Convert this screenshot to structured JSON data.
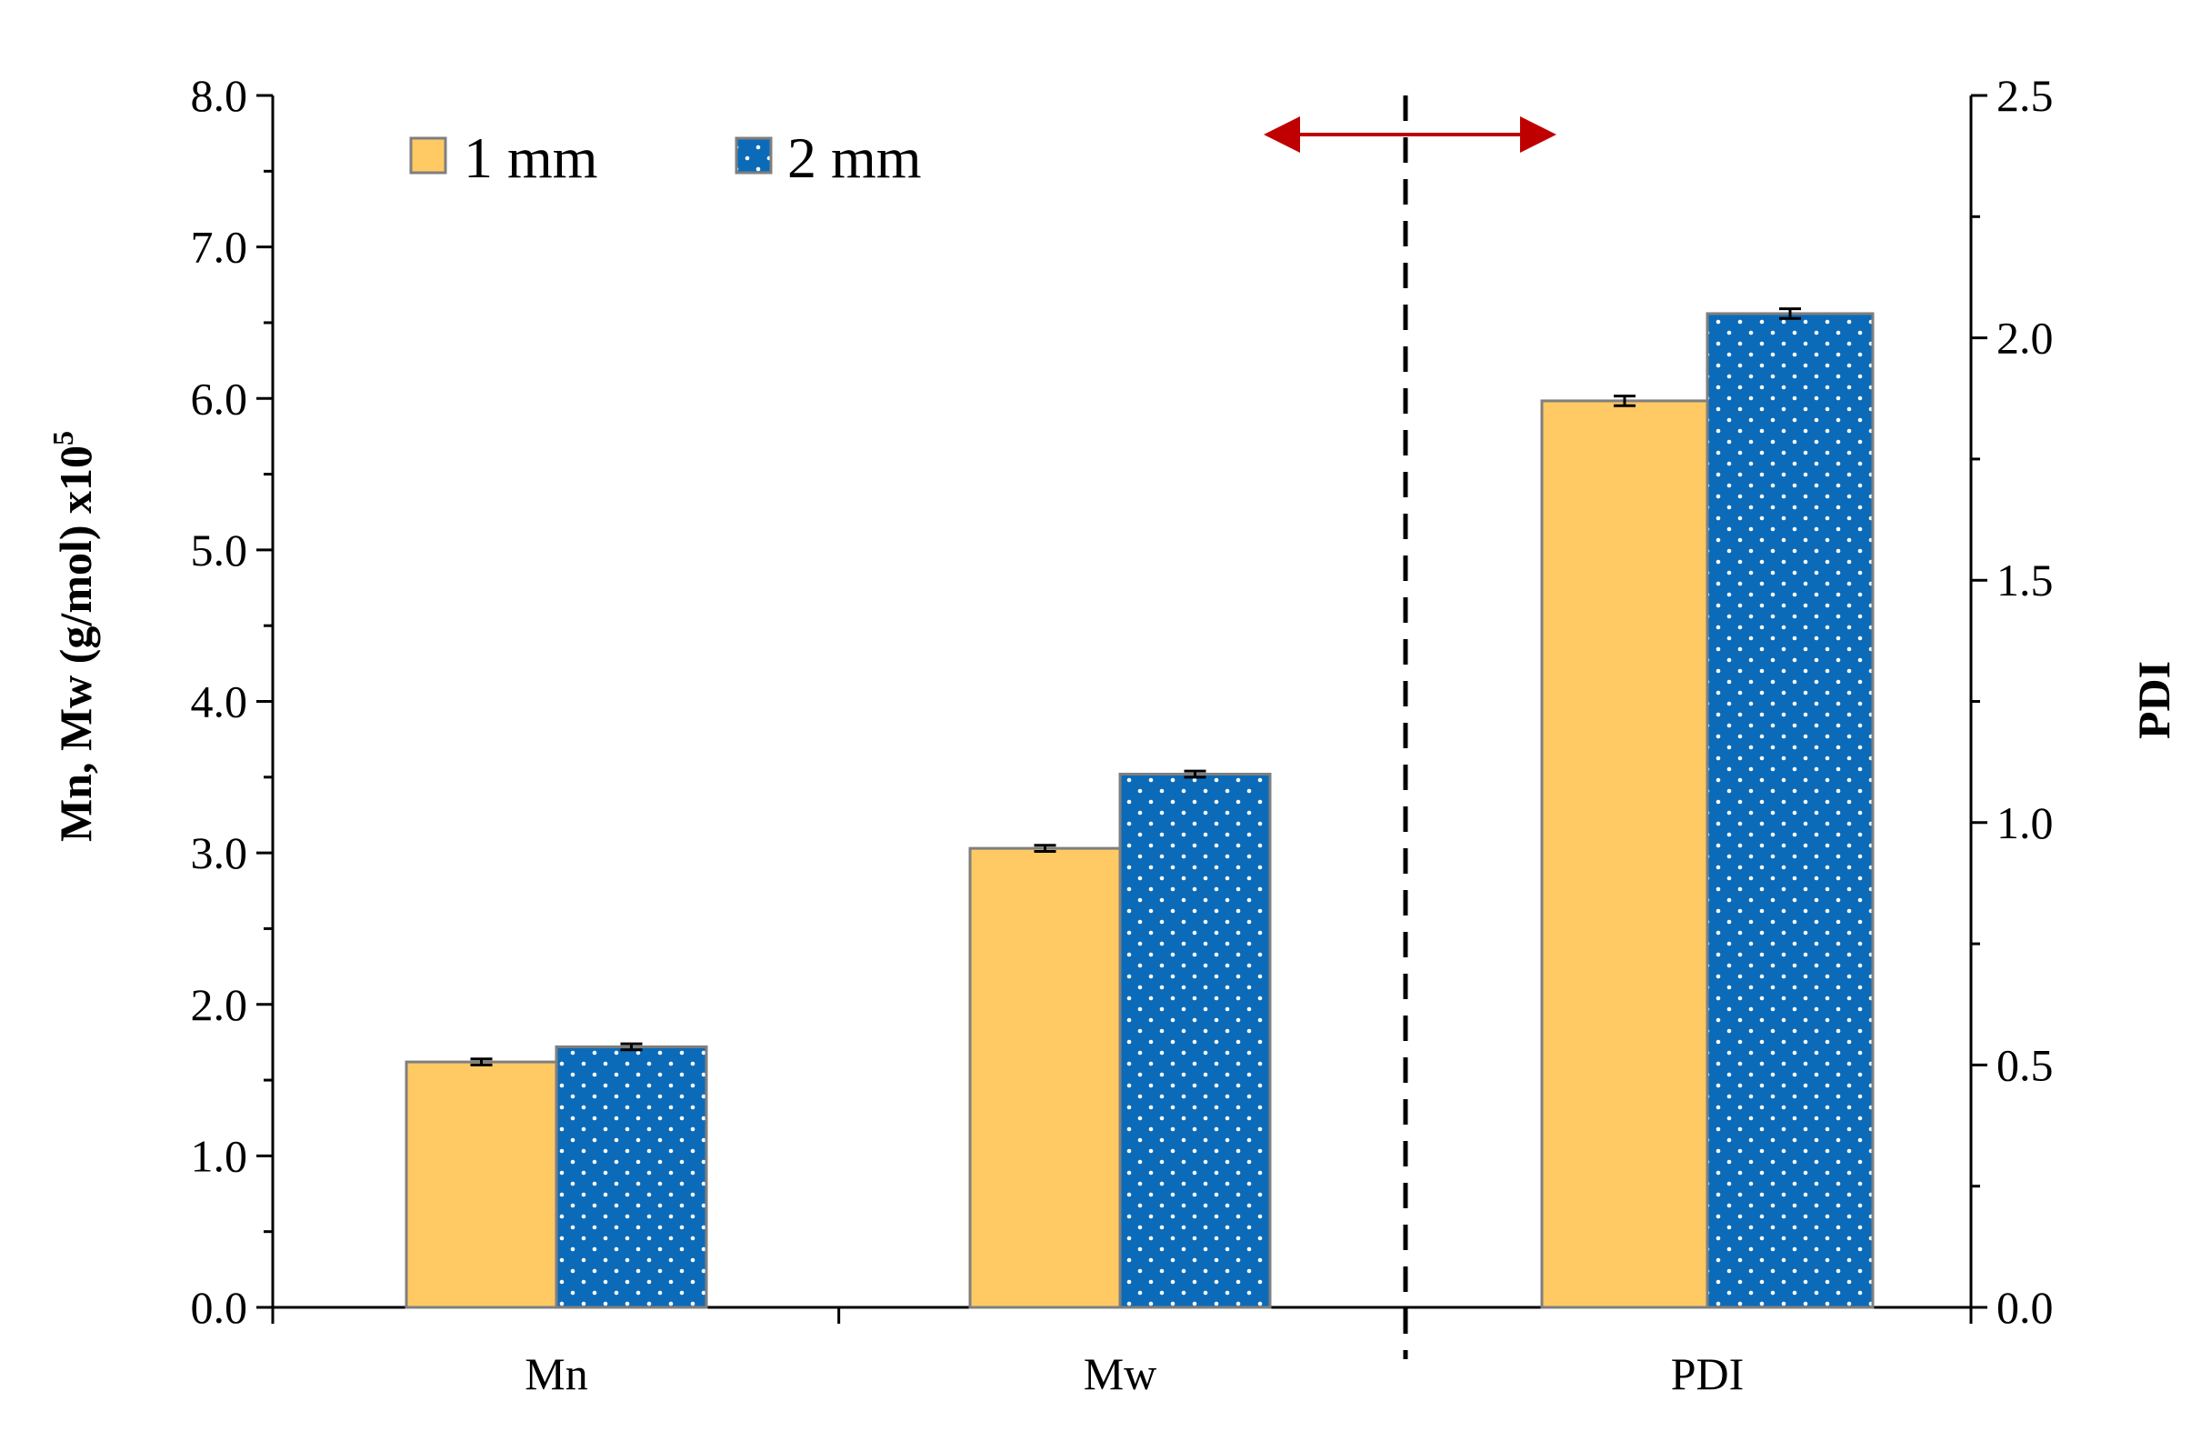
{
  "chart_data": {
    "type": "bar",
    "categories": [
      "Mn",
      "Mw",
      "PDI"
    ],
    "series": [
      {
        "name": "1 mm",
        "values": [
          1.62,
          3.03,
          1.87
        ],
        "errors": [
          0.02,
          0.02,
          0.01
        ],
        "color": "#FFC964",
        "pattern": "solid"
      },
      {
        "name": "2 mm",
        "values": [
          1.72,
          3.52,
          2.05
        ],
        "errors": [
          0.02,
          0.02,
          0.01
        ],
        "color": "#0C6BB8",
        "pattern": "dotted"
      }
    ],
    "axis_assignment": [
      "left",
      "left",
      "right"
    ],
    "left_axis": {
      "label": "Mn, Mw (g/mol) x10",
      "label_superscript": "5",
      "ylim": [
        0,
        8.0
      ],
      "major_ticks": [
        0,
        1,
        2,
        3,
        4,
        5,
        6,
        7,
        8
      ],
      "tick_labels": [
        "0.0",
        "1.0",
        "2.0",
        "3.0",
        "4.0",
        "5.0",
        "6.0",
        "7.0",
        "8.0"
      ]
    },
    "right_axis": {
      "label": "PDI",
      "ylim": [
        0,
        2.5
      ],
      "major_ticks": [
        0,
        0.5,
        1.0,
        1.5,
        2.0,
        2.5
      ],
      "tick_labels": [
        "0.0",
        "0.5",
        "1.0",
        "1.5",
        "2.0",
        "2.5"
      ]
    },
    "legend": {
      "position": "top-left",
      "entries": [
        "1 mm",
        "2 mm"
      ]
    },
    "annotations": {
      "divider": "dashed vertical line between Mw and PDI",
      "arrow": "red double-headed arrow marking left and right axis groups",
      "arrow_color": "#C00000"
    },
    "grid": false
  }
}
